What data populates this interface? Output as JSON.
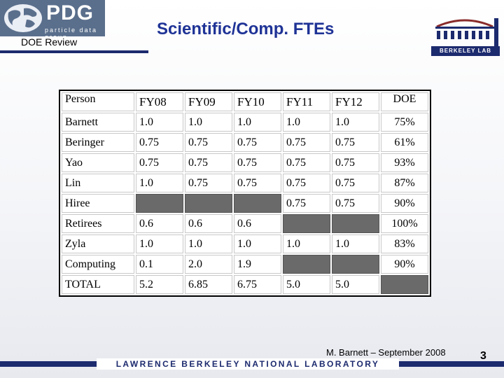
{
  "header": {
    "logo_text": "PDG",
    "logo_subtitle": "particle data group",
    "doe_review": "DOE Review",
    "title": "Scientific/Comp. FTEs",
    "lab_logo_text": "BERKELEY LAB"
  },
  "table": {
    "header": [
      "Person",
      "FY08",
      "FY09",
      "FY10",
      "FY11",
      "FY12",
      "DOE"
    ],
    "rows": [
      [
        "Barnett",
        "1.0",
        "1.0",
        "1.0",
        "1.0",
        "1.0",
        "75%"
      ],
      [
        "Beringer",
        "0.75",
        "0.75",
        "0.75",
        "0.75",
        "0.75",
        "61%"
      ],
      [
        "Yao",
        "0.75",
        "0.75",
        "0.75",
        "0.75",
        "0.75",
        "93%"
      ],
      [
        "Lin",
        "1.0",
        "0.75",
        "0.75",
        "0.75",
        "0.75",
        "87%"
      ],
      [
        "Hiree",
        "",
        "",
        "",
        "0.75",
        "0.75",
        "90%"
      ],
      [
        "Retirees",
        "0.6",
        "0.6",
        "0.6",
        "",
        "",
        "100%"
      ],
      [
        "Zyla",
        "1.0",
        "1.0",
        "1.0",
        "1.0",
        "1.0",
        "83%"
      ],
      [
        "Computing",
        "0.1",
        "2.0",
        "1.9",
        "",
        "",
        "90%"
      ],
      [
        "TOTAL",
        "5.2",
        "6.85",
        "6.75",
        "5.0",
        "5.0",
        ""
      ]
    ]
  },
  "footer": {
    "author_date": "M. Barnett – September 2008",
    "page_number": "3",
    "lab_name": "LAWRENCE BERKELEY NATIONAL LABORATORY"
  },
  "colors": {
    "title": "#1f3396",
    "navy": "#1c2a6e",
    "shaded_cell": "#6a6a6a"
  }
}
